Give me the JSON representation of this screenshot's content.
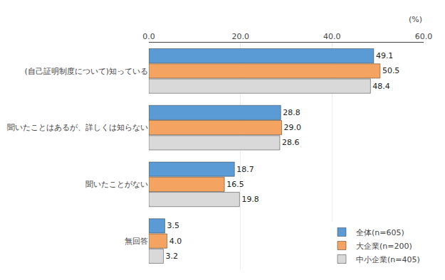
{
  "chart_data": {
    "type": "bar",
    "orientation": "horizontal",
    "categories": [
      "(自己証明制度について)知っている",
      "聞いたことはあるが、詳しくは知らない",
      "聞いたことがない",
      "無回答"
    ],
    "series": [
      {
        "name": "全体(n=605)",
        "color": "#5b9bd5",
        "values": [
          49.1,
          28.8,
          18.7,
          3.5
        ],
        "value_labels": [
          "49.1",
          "28.8",
          "18.7",
          "3.5"
        ]
      },
      {
        "name": "大企業(n=200)",
        "color": "#f4a460",
        "values": [
          50.5,
          29.0,
          16.5,
          4.0
        ],
        "value_labels": [
          "50.5",
          "29.0",
          "16.5",
          "4.0"
        ]
      },
      {
        "name": "中小企業(n=405)",
        "color": "#d9d9d9",
        "values": [
          48.4,
          28.6,
          19.8,
          3.2
        ],
        "value_labels": [
          "48.4",
          "28.6",
          "19.8",
          "3.2"
        ]
      }
    ],
    "xlim": [
      0,
      60
    ],
    "xticks": [
      {
        "value": 0,
        "label": "0.0"
      },
      {
        "value": 20,
        "label": "20.0"
      },
      {
        "value": 40,
        "label": "40.0"
      },
      {
        "value": 60,
        "label": "60.0"
      }
    ],
    "annotations": [
      "(%)"
    ],
    "grid": true,
    "legend": "lower right",
    "data_labels": true
  }
}
